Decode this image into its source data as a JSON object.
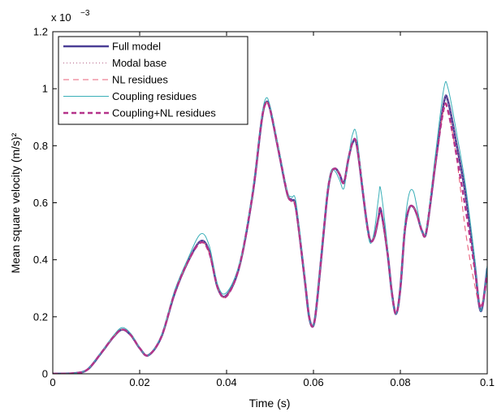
{
  "chart_data": {
    "type": "line",
    "xlabel": "Time (s)",
    "ylabel": "Mean square velocity (m/s)²",
    "exponent_prefix": "x 10",
    "exponent_power": "−3",
    "xlim": [
      0,
      0.1
    ],
    "ylim": [
      0,
      1.2
    ],
    "grid": false,
    "legend_position": "top-left",
    "x_ticks": [
      0,
      0.02,
      0.04,
      0.06,
      0.08,
      0.1
    ],
    "x_tick_labels": [
      "0",
      "0.02",
      "0.04",
      "0.06",
      "0.08",
      "0.1"
    ],
    "y_ticks": [
      0,
      0.2,
      0.4,
      0.6,
      0.8,
      1.0,
      1.2
    ],
    "y_tick_labels": [
      "0",
      "0.2",
      "0.4",
      "0.6",
      "0.8",
      "1",
      "1.2"
    ],
    "x": [
      0,
      0.005,
      0.008,
      0.011,
      0.014,
      0.016,
      0.018,
      0.02,
      0.022,
      0.025,
      0.028,
      0.031,
      0.034,
      0.036,
      0.038,
      0.04,
      0.043,
      0.046,
      0.048,
      0.049,
      0.05,
      0.052,
      0.054,
      0.055,
      0.056,
      0.058,
      0.059,
      0.06,
      0.061,
      0.063,
      0.064,
      0.065,
      0.066,
      0.067,
      0.068,
      0.069,
      0.07,
      0.072,
      0.073,
      0.074,
      0.075,
      0.0755,
      0.077,
      0.078,
      0.079,
      0.08,
      0.081,
      0.082,
      0.083,
      0.084,
      0.085,
      0.086,
      0.088,
      0.09,
      0.091,
      0.093,
      0.095,
      0.097,
      0.0985,
      0.1
    ],
    "series": [
      {
        "name": "Full model",
        "color": "#4b3f96",
        "dash": "none",
        "width": 2.6,
        "values": [
          0.0,
          0.002,
          0.015,
          0.07,
          0.13,
          0.155,
          0.135,
          0.09,
          0.065,
          0.13,
          0.28,
          0.39,
          0.465,
          0.43,
          0.3,
          0.275,
          0.38,
          0.63,
          0.88,
          0.95,
          0.93,
          0.78,
          0.63,
          0.61,
          0.58,
          0.33,
          0.2,
          0.17,
          0.28,
          0.6,
          0.7,
          0.72,
          0.7,
          0.67,
          0.75,
          0.81,
          0.8,
          0.56,
          0.47,
          0.48,
          0.55,
          0.575,
          0.43,
          0.29,
          0.21,
          0.3,
          0.5,
          0.58,
          0.585,
          0.55,
          0.5,
          0.5,
          0.73,
          0.95,
          0.955,
          0.8,
          0.63,
          0.4,
          0.22,
          0.37
        ]
      },
      {
        "name": "Modal base",
        "color": "#c07a9a",
        "dash": "1,3",
        "width": 1.2,
        "values": [
          0.0,
          0.002,
          0.015,
          0.07,
          0.13,
          0.155,
          0.135,
          0.09,
          0.065,
          0.13,
          0.28,
          0.39,
          0.465,
          0.43,
          0.3,
          0.275,
          0.38,
          0.63,
          0.88,
          0.95,
          0.93,
          0.78,
          0.63,
          0.61,
          0.58,
          0.33,
          0.2,
          0.17,
          0.28,
          0.6,
          0.7,
          0.72,
          0.7,
          0.67,
          0.75,
          0.81,
          0.8,
          0.56,
          0.47,
          0.48,
          0.55,
          0.575,
          0.43,
          0.29,
          0.21,
          0.3,
          0.5,
          0.58,
          0.585,
          0.55,
          0.5,
          0.5,
          0.73,
          0.95,
          0.955,
          0.8,
          0.63,
          0.4,
          0.22,
          0.37
        ]
      },
      {
        "name": "NL residues",
        "color": "#e8607a",
        "dash": "7,5",
        "width": 1.1,
        "values": [
          0.0,
          0.002,
          0.015,
          0.07,
          0.13,
          0.155,
          0.135,
          0.09,
          0.065,
          0.13,
          0.28,
          0.39,
          0.46,
          0.425,
          0.3,
          0.272,
          0.38,
          0.63,
          0.88,
          0.948,
          0.928,
          0.78,
          0.63,
          0.605,
          0.575,
          0.33,
          0.2,
          0.17,
          0.28,
          0.6,
          0.7,
          0.72,
          0.7,
          0.67,
          0.75,
          0.81,
          0.8,
          0.56,
          0.47,
          0.48,
          0.55,
          0.575,
          0.43,
          0.29,
          0.21,
          0.3,
          0.5,
          0.58,
          0.585,
          0.55,
          0.5,
          0.5,
          0.73,
          0.93,
          0.92,
          0.75,
          0.5,
          0.32,
          0.24,
          0.34
        ]
      },
      {
        "name": "Coupling residues",
        "color": "#3aafb8",
        "dash": "none",
        "width": 1.0,
        "values": [
          0.0,
          0.002,
          0.016,
          0.072,
          0.135,
          0.162,
          0.14,
          0.092,
          0.065,
          0.135,
          0.29,
          0.4,
          0.49,
          0.45,
          0.31,
          0.285,
          0.39,
          0.64,
          0.89,
          0.965,
          0.94,
          0.79,
          0.64,
          0.62,
          0.6,
          0.34,
          0.2,
          0.17,
          0.29,
          0.61,
          0.71,
          0.71,
          0.68,
          0.65,
          0.75,
          0.84,
          0.83,
          0.56,
          0.46,
          0.5,
          0.62,
          0.645,
          0.45,
          0.28,
          0.21,
          0.3,
          0.52,
          0.63,
          0.64,
          0.57,
          0.5,
          0.51,
          0.76,
          1.0,
          1.0,
          0.84,
          0.66,
          0.42,
          0.22,
          0.38
        ]
      },
      {
        "name": "Coupling+NL residues",
        "color": "#b5338a",
        "dash": "6,4",
        "width": 2.4,
        "values": [
          0.0,
          0.002,
          0.015,
          0.07,
          0.13,
          0.155,
          0.135,
          0.09,
          0.065,
          0.13,
          0.28,
          0.39,
          0.46,
          0.425,
          0.3,
          0.272,
          0.38,
          0.63,
          0.88,
          0.948,
          0.928,
          0.78,
          0.63,
          0.605,
          0.575,
          0.33,
          0.2,
          0.17,
          0.28,
          0.6,
          0.7,
          0.72,
          0.7,
          0.67,
          0.75,
          0.81,
          0.8,
          0.56,
          0.47,
          0.48,
          0.55,
          0.575,
          0.43,
          0.29,
          0.21,
          0.3,
          0.5,
          0.58,
          0.585,
          0.55,
          0.5,
          0.5,
          0.73,
          0.93,
          0.92,
          0.76,
          0.58,
          0.38,
          0.23,
          0.35
        ]
      }
    ]
  }
}
